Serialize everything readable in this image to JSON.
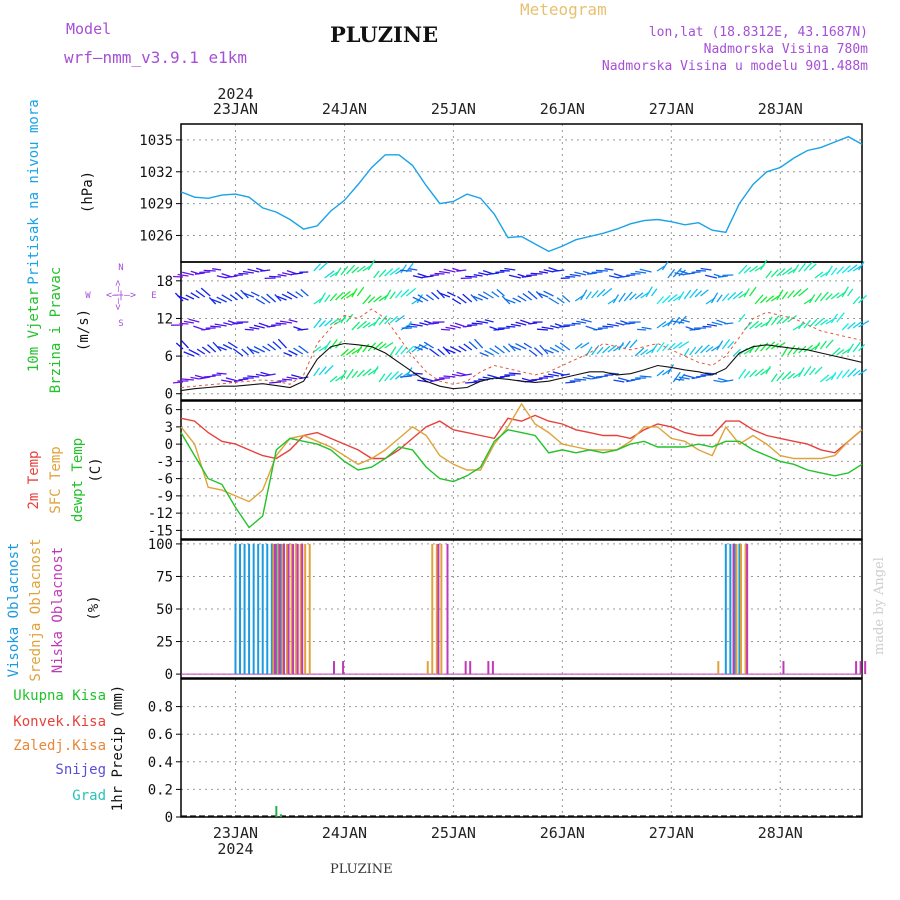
{
  "header": {
    "model_label": "Model",
    "model_name": "wrf–nmm_v3.9.1  e1km",
    "station": "PLUZINE",
    "product": "Meteogram",
    "coords": "lon,lat (18.8312E, 43.1687N)",
    "elevation": "Nadmorska Visina 780m",
    "model_elevation": "Nadmorska Visina u modelu 901.488m",
    "footer": "PLUZINE",
    "credit": "made by Angel"
  },
  "colors": {
    "pressure": "#1aa3e8",
    "temp2m": "#e8413c",
    "sfc_temp": "#e0a23a",
    "dewpt": "#22c22a",
    "cloud_high": "#1a9be0",
    "cloud_mid": "#e0a23a",
    "cloud_low": "#c03ab8",
    "purple": "#a64fd6",
    "precip_total": "#22b34a"
  },
  "time_axis": {
    "year": "2024",
    "day_labels": [
      "23JAN",
      "24JAN",
      "25JAN",
      "26JAN",
      "27JAN",
      "28JAN"
    ],
    "start_hour": -12,
    "end_hour": 138
  },
  "panels": {
    "pressure": {
      "label_main": "Pritisak na nivou mora",
      "unit": "(hPa)"
    },
    "wind": {
      "label_1": "10m Vjetar",
      "label_2": "Brzina i Pravac",
      "unit": "(m/s)",
      "compass_n": "N",
      "compass_s": "S",
      "compass_w": "W",
      "compass_e": "E",
      "compass_arrows": "<–|–>"
    },
    "temp": {
      "label_1": "2m Temp",
      "label_2": "SFC Temp",
      "label_3": "dewpt Temp",
      "unit": "(C)"
    },
    "cloud": {
      "label_1": "Visoka Oblacnost",
      "label_2": "Srednja Oblacnost",
      "label_3": "Niska Oblacnost",
      "unit": "(%)"
    },
    "precip": {
      "label_total": "Ukupna Kisa",
      "label_conv": "Konvek.Kisa",
      "label_frz": "Zaledj.Kisa",
      "label_snow": "Snijeg",
      "label_hail": "Grad",
      "unit_label": "1hr Precip (mm)"
    }
  },
  "chart_data": [
    {
      "type": "line",
      "name": "pressure",
      "ylabel": "Pritisak na nivou mora (hPa)",
      "ylim": [
        1023.5,
        1036.5
      ],
      "yticks": [
        1026,
        1029,
        1032,
        1035
      ],
      "x_hours": [
        -12,
        -9,
        -6,
        -3,
        0,
        3,
        6,
        9,
        12,
        15,
        18,
        21,
        24,
        27,
        30,
        33,
        36,
        39,
        42,
        45,
        48,
        51,
        54,
        57,
        60,
        63,
        66,
        69,
        72,
        75,
        78,
        81,
        84,
        87,
        90,
        93,
        96,
        99,
        102,
        105,
        108,
        111,
        114,
        117,
        120,
        123,
        126,
        129,
        132,
        135,
        138
      ],
      "series": [
        {
          "values": [
            1030.1,
            1029.6,
            1029.5,
            1029.8,
            1029.9,
            1029.6,
            1028.6,
            1028.2,
            1027.5,
            1026.6,
            1026.9,
            1028.3,
            1029.3,
            1030.8,
            1032.4,
            1033.6,
            1033.6,
            1032.6,
            1030.7,
            1029.0,
            1029.2,
            1029.9,
            1029.5,
            1028.0,
            1025.8,
            1025.9,
            1025.2,
            1024.5,
            1025.0,
            1025.6,
            1025.9,
            1026.2,
            1026.6,
            1027.1,
            1027.4,
            1027.5,
            1027.3,
            1027.0,
            1027.2,
            1026.5,
            1026.3,
            1029.0,
            1030.8,
            1032.0,
            1032.4,
            1033.3,
            1034.0,
            1034.3,
            1034.8,
            1035.3,
            1034.6
          ]
        }
      ]
    },
    {
      "type": "line",
      "name": "wind",
      "ylabel": "10m Vjetar Brzina i Pravac (m/s)",
      "ylim": [
        -1,
        21
      ],
      "yticks": [
        0,
        6,
        12,
        18
      ],
      "x_hours": [
        -12,
        -9,
        -6,
        -3,
        0,
        3,
        6,
        9,
        12,
        15,
        18,
        21,
        24,
        27,
        30,
        33,
        36,
        39,
        42,
        45,
        48,
        51,
        54,
        57,
        60,
        63,
        66,
        69,
        72,
        75,
        78,
        81,
        84,
        87,
        90,
        93,
        96,
        99,
        102,
        105,
        108,
        111,
        114,
        117,
        120,
        123,
        126,
        129,
        132,
        135,
        138
      ],
      "series": [
        {
          "name": "speed",
          "values": [
            0.5,
            0.8,
            1.0,
            1.2,
            1.2,
            1.4,
            1.6,
            1.3,
            1.0,
            2.0,
            5.5,
            7.5,
            8.0,
            7.8,
            7.5,
            6.5,
            5.0,
            3.5,
            2.0,
            1.2,
            0.8,
            1.0,
            2.0,
            2.5,
            2.3,
            2.0,
            1.8,
            2.0,
            2.5,
            3.0,
            3.5,
            3.5,
            3.0,
            3.2,
            3.8,
            4.5,
            4.2,
            3.8,
            3.5,
            3.0,
            4.0,
            6.5,
            7.5,
            7.8,
            7.5,
            7.2,
            7.0,
            6.5,
            6.0,
            5.5,
            5.0
          ]
        },
        {
          "name": "gust",
          "values": [
            1.0,
            1.2,
            1.4,
            1.6,
            1.8,
            2.0,
            2.2,
            2.0,
            1.5,
            3.0,
            8.0,
            10.5,
            12.5,
            12.0,
            13.5,
            12.0,
            9.0,
            6.0,
            3.5,
            2.0,
            1.5,
            2.0,
            3.5,
            4.5,
            4.0,
            3.5,
            3.0,
            3.5,
            4.5,
            5.5,
            6.5,
            8.0,
            7.5,
            7.0,
            7.5,
            8.0,
            7.0,
            6.0,
            5.0,
            4.5,
            6.0,
            9.0,
            12.0,
            13.0,
            12.5,
            12.0,
            11.0,
            10.0,
            9.5,
            9.0,
            8.5
          ]
        }
      ]
    },
    {
      "type": "line",
      "name": "temperature",
      "ylabel": "Temperature (C)",
      "ylim": [
        -16.5,
        7.5
      ],
      "yticks": [
        -15,
        -12,
        -9,
        -6,
        -3,
        0,
        3,
        6
      ],
      "x_hours": [
        -12,
        -9,
        -6,
        -3,
        0,
        3,
        6,
        9,
        12,
        15,
        18,
        21,
        24,
        27,
        30,
        33,
        36,
        39,
        42,
        45,
        48,
        51,
        54,
        57,
        60,
        63,
        66,
        69,
        72,
        75,
        78,
        81,
        84,
        87,
        90,
        93,
        96,
        99,
        102,
        105,
        108,
        111,
        114,
        117,
        120,
        123,
        126,
        129,
        132,
        135,
        138
      ],
      "series": [
        {
          "name": "2m Temp",
          "values": [
            4.5,
            4.0,
            2.0,
            0.5,
            0.0,
            -1.0,
            -2.0,
            -2.5,
            -1.0,
            1.5,
            2.0,
            1.0,
            0.0,
            -1.0,
            -2.5,
            -2.5,
            -1.0,
            1.0,
            3.0,
            4.0,
            2.5,
            2.0,
            1.5,
            1.0,
            4.5,
            4.0,
            5.0,
            4.0,
            3.5,
            2.5,
            2.0,
            1.5,
            1.5,
            1.0,
            2.5,
            3.5,
            3.0,
            2.0,
            1.5,
            1.5,
            4.0,
            4.0,
            2.5,
            1.5,
            1.0,
            0.5,
            0.0,
            -1.0,
            -1.5,
            0.5,
            2.5
          ]
        },
        {
          "name": "SFC Temp",
          "values": [
            3.0,
            0.0,
            -7.5,
            -8.0,
            -9.0,
            -10.0,
            -8.0,
            -2.0,
            1.0,
            1.5,
            0.5,
            -0.5,
            -2.0,
            -3.5,
            -2.5,
            -1.0,
            1.0,
            3.0,
            1.5,
            -2.0,
            -3.5,
            -4.5,
            -4.5,
            0.0,
            3.0,
            7.0,
            3.5,
            2.0,
            0.0,
            -0.5,
            -1.0,
            -1.0,
            -1.0,
            0.5,
            3.0,
            3.0,
            1.0,
            0.5,
            -1.0,
            -2.0,
            3.0,
            0.0,
            1.5,
            0.0,
            -2.0,
            -2.5,
            -2.5,
            -2.5,
            -2.0,
            0.5,
            2.5
          ]
        },
        {
          "name": "dewpt Temp",
          "values": [
            2.0,
            -2.0,
            -6.0,
            -7.0,
            -11.0,
            -14.5,
            -12.5,
            -1.0,
            1.0,
            0.5,
            0.0,
            -1.0,
            -3.0,
            -4.5,
            -4.0,
            -2.5,
            -0.5,
            -1.0,
            -4.0,
            -6.0,
            -6.5,
            -5.5,
            -4.0,
            0.5,
            2.5,
            2.0,
            1.5,
            -1.5,
            -1.0,
            -1.5,
            -1.0,
            -1.5,
            -1.0,
            0.0,
            0.5,
            -0.5,
            -0.5,
            -0.5,
            0.0,
            -0.5,
            0.5,
            0.5,
            -1.0,
            -2.0,
            -3.0,
            -3.5,
            -4.5,
            -5.0,
            -5.5,
            -5.0,
            -3.5
          ]
        }
      ]
    },
    {
      "type": "bar",
      "name": "cloud cover",
      "ylabel": "Oblacnost (%)",
      "ylim": [
        -3,
        103
      ],
      "yticks": [
        0,
        25,
        50,
        75,
        100
      ],
      "series": [
        {
          "name": "Visoka Oblacnost",
          "x_hours": [
            0,
            1,
            2,
            3,
            4,
            5,
            6,
            7,
            8,
            9,
            10,
            108,
            109,
            110,
            111
          ],
          "values": [
            100,
            100,
            100,
            100,
            100,
            100,
            100,
            100,
            100,
            100,
            100,
            100,
            100,
            100,
            100
          ]
        },
        {
          "name": "Srednja Oblacnost",
          "x_hours": [
            8,
            9,
            10,
            11,
            12,
            13,
            14,
            15,
            16,
            42,
            43,
            44,
            45,
            106,
            110,
            111,
            112
          ],
          "values": [
            100,
            100,
            100,
            100,
            100,
            100,
            100,
            100,
            100,
            10,
            100,
            100,
            100,
            10,
            100,
            100,
            100
          ]
        },
        {
          "name": "Niska Oblacnost",
          "x_hours": [
            8,
            9,
            10,
            11,
            12,
            13,
            14,
            21,
            23,
            44,
            46,
            50,
            51,
            55,
            56,
            109,
            112,
            120,
            136,
            137,
            138
          ],
          "values": [
            100,
            100,
            100,
            100,
            100,
            100,
            100,
            10,
            10,
            100,
            100,
            10,
            10,
            10,
            10,
            100,
            100,
            10,
            10,
            10,
            10
          ]
        }
      ]
    },
    {
      "type": "bar",
      "name": "precipitation",
      "ylabel": "1hr Precip (mm)",
      "ylim": [
        0,
        1.0
      ],
      "yticks": [
        0,
        0.2,
        0.4,
        0.6,
        0.8
      ],
      "series": [
        {
          "name": "Ukupna Kisa",
          "x_hours": [
            9,
            10
          ],
          "values": [
            0.08,
            0.02
          ]
        }
      ]
    }
  ]
}
